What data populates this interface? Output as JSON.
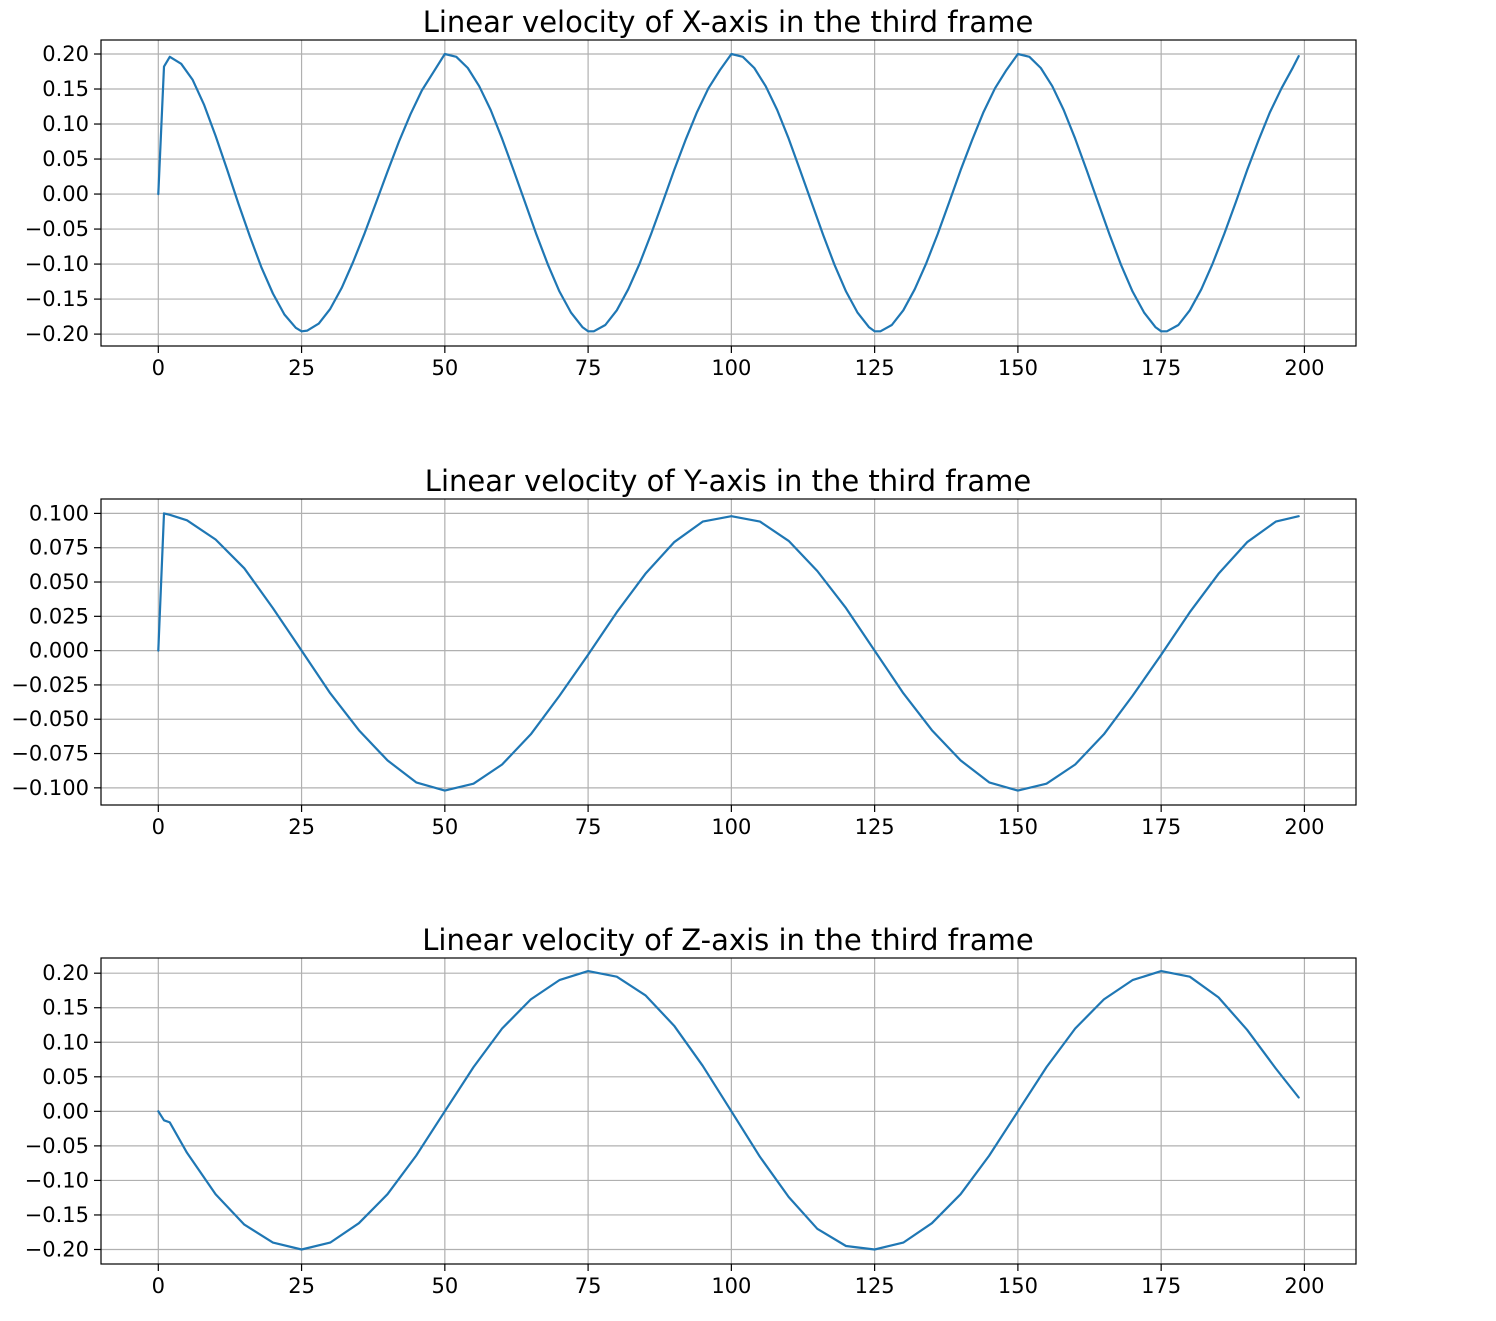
{
  "colors": {
    "series": "#1f77b4",
    "grid": "#b0b0b0",
    "frame": "#000000"
  },
  "chart_data": [
    {
      "type": "line",
      "title": "Linear velocity of X-axis in the third frame",
      "xlabel": "",
      "ylabel": "",
      "xlim": [
        -10,
        209
      ],
      "ylim": [
        -0.217,
        0.22
      ],
      "xticks": [
        0,
        25,
        50,
        75,
        100,
        125,
        150,
        175,
        200
      ],
      "xtick_labels": [
        "0",
        "25",
        "50",
        "75",
        "100",
        "125",
        "150",
        "175",
        "200"
      ],
      "yticks": [
        0.2,
        0.15,
        0.1,
        0.05,
        0.0,
        -0.05,
        -0.1,
        -0.15,
        -0.2
      ],
      "ytick_labels": [
        "0.20",
        "0.15",
        "0.10",
        "0.05",
        "0.00",
        "−0.05",
        "−0.10",
        "−0.15",
        "−0.20"
      ],
      "grid": true,
      "series": [
        {
          "x": [
            0,
            1,
            2,
            4,
            6,
            8,
            10,
            12,
            14,
            16,
            18,
            20,
            22,
            24,
            25,
            26,
            28,
            30,
            32,
            34,
            36,
            38,
            40,
            42,
            44,
            46,
            48,
            50,
            52,
            54,
            56,
            58,
            60,
            62,
            64,
            66,
            68,
            70,
            72,
            74,
            75,
            76,
            78,
            80,
            82,
            84,
            86,
            88,
            90,
            92,
            94,
            96,
            98,
            100,
            102,
            104,
            106,
            108,
            110,
            112,
            114,
            116,
            118,
            120,
            122,
            124,
            125,
            126,
            128,
            130,
            132,
            134,
            136,
            138,
            140,
            142,
            144,
            146,
            148,
            150,
            152,
            154,
            156,
            158,
            160,
            162,
            164,
            166,
            168,
            170,
            172,
            174,
            175,
            176,
            178,
            180,
            182,
            184,
            186,
            188,
            190,
            192,
            194,
            196,
            198,
            199
          ],
          "y": [
            0.0,
            0.182,
            0.196,
            0.186,
            0.163,
            0.127,
            0.083,
            0.035,
            -0.014,
            -0.061,
            -0.105,
            -0.142,
            -0.172,
            -0.191,
            -0.196,
            -0.195,
            -0.185,
            -0.164,
            -0.134,
            -0.097,
            -0.056,
            -0.012,
            0.032,
            0.075,
            0.114,
            0.148,
            0.174,
            0.2,
            0.196,
            0.18,
            0.154,
            0.12,
            0.079,
            0.034,
            -0.012,
            -0.058,
            -0.101,
            -0.139,
            -0.169,
            -0.19,
            -0.196,
            -0.196,
            -0.187,
            -0.166,
            -0.136,
            -0.099,
            -0.057,
            -0.012,
            0.034,
            0.077,
            0.117,
            0.151,
            0.177,
            0.2,
            0.196,
            0.18,
            0.154,
            0.12,
            0.079,
            0.034,
            -0.012,
            -0.058,
            -0.101,
            -0.139,
            -0.169,
            -0.19,
            -0.196,
            -0.196,
            -0.187,
            -0.166,
            -0.136,
            -0.099,
            -0.057,
            -0.012,
            0.034,
            0.077,
            0.117,
            0.151,
            0.177,
            0.2,
            0.196,
            0.18,
            0.154,
            0.12,
            0.079,
            0.034,
            -0.012,
            -0.058,
            -0.101,
            -0.139,
            -0.169,
            -0.19,
            -0.196,
            -0.196,
            -0.187,
            -0.166,
            -0.136,
            -0.099,
            -0.057,
            -0.012,
            0.034,
            0.077,
            0.117,
            0.151,
            0.181,
            0.197
          ]
        }
      ]
    },
    {
      "type": "line",
      "title": "Linear velocity of Y-axis in the third frame",
      "xlabel": "",
      "ylabel": "",
      "xlim": [
        -10,
        209
      ],
      "ylim": [
        -0.1125,
        0.1105
      ],
      "xticks": [
        0,
        25,
        50,
        75,
        100,
        125,
        150,
        175,
        200
      ],
      "xtick_labels": [
        "0",
        "25",
        "50",
        "75",
        "100",
        "125",
        "150",
        "175",
        "200"
      ],
      "yticks": [
        0.1,
        0.075,
        0.05,
        0.025,
        0.0,
        -0.025,
        -0.05,
        -0.075,
        -0.1
      ],
      "ytick_labels": [
        "0.100",
        "0.075",
        "0.050",
        "0.025",
        "0.000",
        "−0.025",
        "−0.050",
        "−0.075",
        "−0.100"
      ],
      "grid": true,
      "series": [
        {
          "x": [
            0,
            1,
            2,
            5,
            10,
            15,
            20,
            25,
            30,
            35,
            40,
            45,
            50,
            55,
            60,
            65,
            70,
            75,
            80,
            85,
            90,
            95,
            100,
            105,
            110,
            115,
            120,
            125,
            130,
            135,
            140,
            145,
            150,
            155,
            160,
            165,
            170,
            175,
            180,
            185,
            190,
            195,
            199
          ],
          "y": [
            0.0,
            0.1,
            0.099,
            0.095,
            0.081,
            0.06,
            0.031,
            0.0,
            -0.031,
            -0.058,
            -0.08,
            -0.096,
            -0.102,
            -0.097,
            -0.083,
            -0.061,
            -0.033,
            -0.003,
            0.028,
            0.056,
            0.079,
            0.094,
            0.098,
            0.094,
            0.08,
            0.058,
            0.031,
            0.0,
            -0.031,
            -0.058,
            -0.08,
            -0.096,
            -0.102,
            -0.097,
            -0.083,
            -0.061,
            -0.033,
            -0.003,
            0.028,
            0.056,
            0.079,
            0.094,
            0.098
          ]
        }
      ]
    },
    {
      "type": "line",
      "title": "Linear velocity of Z-axis in the third frame",
      "xlabel": "",
      "ylabel": "",
      "xlim": [
        -10,
        209
      ],
      "ylim": [
        -0.221,
        0.222
      ],
      "xticks": [
        0,
        25,
        50,
        75,
        100,
        125,
        150,
        175,
        200
      ],
      "xtick_labels": [
        "0",
        "25",
        "50",
        "75",
        "100",
        "125",
        "150",
        "175",
        "200"
      ],
      "yticks": [
        0.2,
        0.15,
        0.1,
        0.05,
        0.0,
        -0.05,
        -0.1,
        -0.15,
        -0.2
      ],
      "ytick_labels": [
        "0.20",
        "0.15",
        "0.10",
        "0.05",
        "0.00",
        "−0.05",
        "−0.10",
        "−0.15",
        "−0.20"
      ],
      "grid": true,
      "series": [
        {
          "x": [
            0,
            1,
            2,
            5,
            10,
            15,
            20,
            25,
            30,
            35,
            40,
            45,
            50,
            55,
            60,
            65,
            70,
            75,
            80,
            85,
            90,
            95,
            100,
            105,
            110,
            115,
            120,
            125,
            130,
            135,
            140,
            145,
            150,
            155,
            160,
            165,
            170,
            175,
            180,
            185,
            190,
            195,
            199
          ],
          "y": [
            0.0,
            -0.013,
            -0.016,
            -0.06,
            -0.12,
            -0.164,
            -0.19,
            -0.2,
            -0.19,
            -0.162,
            -0.12,
            -0.064,
            0.0,
            0.064,
            0.12,
            0.162,
            0.19,
            0.203,
            0.195,
            0.168,
            0.124,
            0.066,
            0.0,
            -0.066,
            -0.124,
            -0.17,
            -0.195,
            -0.2,
            -0.19,
            -0.162,
            -0.12,
            -0.064,
            0.0,
            0.064,
            0.12,
            0.162,
            0.19,
            0.203,
            0.195,
            0.165,
            0.118,
            0.062,
            0.02
          ]
        }
      ]
    }
  ]
}
